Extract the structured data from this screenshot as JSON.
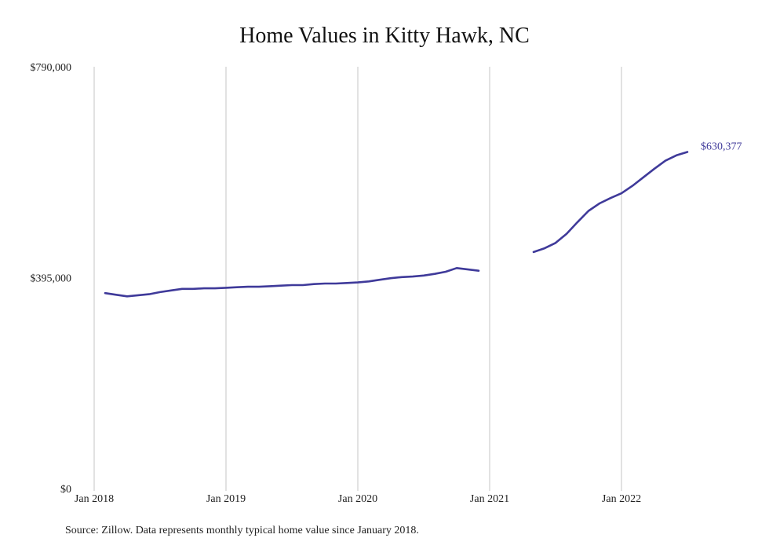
{
  "chart_data": {
    "type": "line",
    "title": "Home Values in Kitty Hawk, NC",
    "xlabel": "",
    "ylabel": "",
    "ylim": [
      0,
      790000
    ],
    "yticks": [
      {
        "value": 0,
        "label": "$0"
      },
      {
        "value": 395000,
        "label": "$395,000"
      },
      {
        "value": 790000,
        "label": "$790,000"
      }
    ],
    "xticks": [
      {
        "value": "2018-01",
        "label": "Jan 2018"
      },
      {
        "value": "2019-01",
        "label": "Jan 2019"
      },
      {
        "value": "2020-01",
        "label": "Jan 2020"
      },
      {
        "value": "2021-01",
        "label": "Jan 2021"
      },
      {
        "value": "2022-01",
        "label": "Jan 2022"
      }
    ],
    "grid": "vertical",
    "color": "#3f3a9a",
    "series": [
      {
        "segments": [
          [
            {
              "x": "2018-02",
              "y": 366000
            },
            {
              "x": "2018-03",
              "y": 363000
            },
            {
              "x": "2018-04",
              "y": 360000
            },
            {
              "x": "2018-05",
              "y": 362000
            },
            {
              "x": "2018-06",
              "y": 364000
            },
            {
              "x": "2018-07",
              "y": 368000
            },
            {
              "x": "2018-08",
              "y": 371000
            },
            {
              "x": "2018-09",
              "y": 374000
            },
            {
              "x": "2018-10",
              "y": 374000
            },
            {
              "x": "2018-11",
              "y": 375000
            },
            {
              "x": "2018-12",
              "y": 375000
            },
            {
              "x": "2019-01",
              "y": 376000
            },
            {
              "x": "2019-02",
              "y": 377000
            },
            {
              "x": "2019-03",
              "y": 378000
            },
            {
              "x": "2019-04",
              "y": 378000
            },
            {
              "x": "2019-05",
              "y": 379000
            },
            {
              "x": "2019-06",
              "y": 380000
            },
            {
              "x": "2019-07",
              "y": 381000
            },
            {
              "x": "2019-08",
              "y": 381000
            },
            {
              "x": "2019-09",
              "y": 383000
            },
            {
              "x": "2019-10",
              "y": 384000
            },
            {
              "x": "2019-11",
              "y": 384000
            },
            {
              "x": "2019-12",
              "y": 385000
            },
            {
              "x": "2020-01",
              "y": 386000
            },
            {
              "x": "2020-02",
              "y": 388000
            },
            {
              "x": "2020-03",
              "y": 391000
            },
            {
              "x": "2020-04",
              "y": 394000
            },
            {
              "x": "2020-05",
              "y": 396000
            },
            {
              "x": "2020-06",
              "y": 397000
            },
            {
              "x": "2020-07",
              "y": 399000
            },
            {
              "x": "2020-08",
              "y": 402000
            },
            {
              "x": "2020-09",
              "y": 406000
            },
            {
              "x": "2020-10",
              "y": 413000
            },
            {
              "x": "2020-12",
              "y": 408000
            }
          ],
          [
            {
              "x": "2021-05",
              "y": 443000
            },
            {
              "x": "2021-06",
              "y": 450000
            },
            {
              "x": "2021-07",
              "y": 460000
            },
            {
              "x": "2021-08",
              "y": 477000
            },
            {
              "x": "2021-09",
              "y": 499000
            },
            {
              "x": "2021-10",
              "y": 520000
            },
            {
              "x": "2021-11",
              "y": 534000
            },
            {
              "x": "2021-12",
              "y": 544000
            },
            {
              "x": "2022-01",
              "y": 553000
            },
            {
              "x": "2022-02",
              "y": 567000
            },
            {
              "x": "2022-03",
              "y": 583000
            },
            {
              "x": "2022-04",
              "y": 599000
            },
            {
              "x": "2022-05",
              "y": 614000
            },
            {
              "x": "2022-06",
              "y": 624000
            },
            {
              "x": "2022-07",
              "y": 630377
            }
          ]
        ]
      }
    ],
    "end_label": "$630,377"
  },
  "source_note": "Source: Zillow. Data represents monthly typical home value since January 2018."
}
